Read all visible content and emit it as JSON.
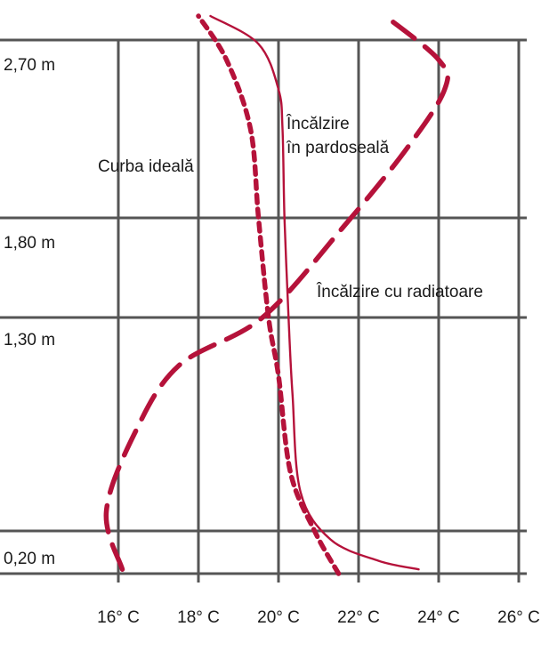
{
  "chart_data": {
    "type": "line",
    "title": "",
    "xlabel": "",
    "ylabel": "",
    "x_ticks": [
      "16° C",
      "18° C",
      "20° C",
      "22° C",
      "24° C",
      "26° C"
    ],
    "x_tick_values": [
      16,
      18,
      20,
      22,
      24,
      26
    ],
    "y_ticks": [
      "0,20 m",
      "1,30 m",
      "1,80 m",
      "2,70 m"
    ],
    "y_tick_values": [
      0.2,
      1.3,
      1.8,
      2.7
    ],
    "grid": true,
    "colors": {
      "curve": "#b5123a",
      "grid": "#555555",
      "text": "#1a1a1a"
    },
    "series": [
      {
        "name": "Curba ideală",
        "style": "dotted",
        "points": [
          [
            21.5,
            0.0
          ],
          [
            20.9,
            0.2
          ],
          [
            20.3,
            0.5
          ],
          [
            20.0,
            1.0
          ],
          [
            19.75,
            1.3
          ],
          [
            19.5,
            1.8
          ],
          [
            19.3,
            2.25
          ],
          [
            18.7,
            2.6
          ],
          [
            18.0,
            2.82
          ]
        ]
      },
      {
        "name": "Încălzire în pardoseală",
        "style": "solid",
        "points": [
          [
            23.5,
            0.02
          ],
          [
            22.5,
            0.06
          ],
          [
            21.3,
            0.16
          ],
          [
            20.55,
            0.4
          ],
          [
            20.35,
            0.9
          ],
          [
            20.25,
            1.3
          ],
          [
            20.15,
            1.8
          ],
          [
            20.1,
            2.25
          ],
          [
            20.0,
            2.45
          ],
          [
            19.5,
            2.68
          ],
          [
            18.3,
            2.82
          ]
        ]
      },
      {
        "name": "Încălzire cu radiatoare",
        "style": "dashed",
        "points": [
          [
            16.1,
            0.02
          ],
          [
            15.7,
            0.3
          ],
          [
            16.4,
            0.7
          ],
          [
            17.5,
            1.05
          ],
          [
            19.6,
            1.3
          ],
          [
            21.6,
            1.75
          ],
          [
            23.2,
            2.15
          ],
          [
            24.15,
            2.45
          ],
          [
            24.0,
            2.6
          ],
          [
            22.6,
            2.83
          ]
        ]
      }
    ],
    "annotations": [
      {
        "id": "ideal",
        "lines": [
          "Curba ideală"
        ]
      },
      {
        "id": "floor",
        "lines": [
          "Încălzire",
          "în pardoseală"
        ]
      },
      {
        "id": "radiator",
        "lines": [
          "Încălzire cu radiatoare"
        ]
      }
    ]
  }
}
